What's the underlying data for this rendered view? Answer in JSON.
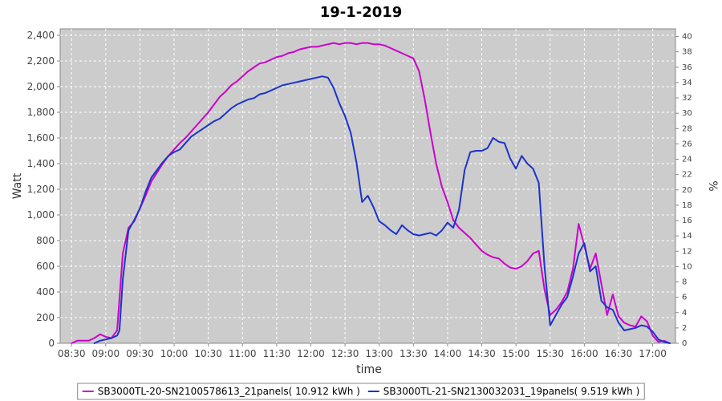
{
  "chart_data": {
    "type": "line",
    "title": "19-1-2019",
    "xlabel": "time",
    "ylabel": "Watt",
    "y2label": "%",
    "ylim": [
      0,
      2450
    ],
    "y2lim": [
      0,
      41
    ],
    "yticks": [
      0,
      200,
      400,
      600,
      800,
      1000,
      1200,
      1400,
      1600,
      1800,
      2000,
      2200,
      2400
    ],
    "ytick_labels": [
      "0",
      "200",
      "400",
      "600",
      "800",
      "1,000",
      "1,200",
      "1,400",
      "1,600",
      "1,800",
      "2,000",
      "2,200",
      "2,400"
    ],
    "y2ticks": [
      0,
      2,
      4,
      6,
      8,
      10,
      12,
      14,
      16,
      18,
      20,
      22,
      24,
      26,
      28,
      30,
      32,
      34,
      36,
      38,
      40
    ],
    "xlim": [
      "08:20",
      "17:20"
    ],
    "xticks": [
      "08:30",
      "09:00",
      "09:30",
      "10:00",
      "10:30",
      "11:00",
      "11:30",
      "12:00",
      "12:30",
      "13:00",
      "13:30",
      "14:00",
      "14:30",
      "15:00",
      "15:30",
      "16:00",
      "16:30",
      "17:00"
    ],
    "grid": true,
    "legend_position": "bottom",
    "series": [
      {
        "name": "SB3000TL-20-SN2100578613_21panels( 10.912 kWh )",
        "color": "#cc00cc",
        "points": [
          [
            "08:30",
            0
          ],
          [
            "08:35",
            20
          ],
          [
            "08:45",
            20
          ],
          [
            "08:50",
            40
          ],
          [
            "08:55",
            70
          ],
          [
            "09:00",
            50
          ],
          [
            "09:05",
            40
          ],
          [
            "09:10",
            100
          ],
          [
            "09:15",
            700
          ],
          [
            "09:20",
            900
          ],
          [
            "09:25",
            950
          ],
          [
            "09:30",
            1050
          ],
          [
            "09:35",
            1150
          ],
          [
            "09:40",
            1260
          ],
          [
            "09:45",
            1330
          ],
          [
            "09:50",
            1400
          ],
          [
            "09:55",
            1460
          ],
          [
            "10:00",
            1510
          ],
          [
            "10:05",
            1560
          ],
          [
            "10:10",
            1600
          ],
          [
            "10:15",
            1650
          ],
          [
            "10:20",
            1700
          ],
          [
            "10:25",
            1750
          ],
          [
            "10:30",
            1800
          ],
          [
            "10:35",
            1860
          ],
          [
            "10:40",
            1920
          ],
          [
            "10:45",
            1960
          ],
          [
            "10:50",
            2010
          ],
          [
            "10:55",
            2040
          ],
          [
            "11:00",
            2080
          ],
          [
            "11:05",
            2120
          ],
          [
            "11:10",
            2150
          ],
          [
            "11:15",
            2180
          ],
          [
            "11:20",
            2190
          ],
          [
            "11:25",
            2210
          ],
          [
            "11:30",
            2230
          ],
          [
            "11:35",
            2240
          ],
          [
            "11:40",
            2260
          ],
          [
            "11:45",
            2270
          ],
          [
            "11:50",
            2290
          ],
          [
            "11:55",
            2300
          ],
          [
            "12:00",
            2310
          ],
          [
            "12:05",
            2310
          ],
          [
            "12:10",
            2320
          ],
          [
            "12:15",
            2330
          ],
          [
            "12:20",
            2340
          ],
          [
            "12:25",
            2330
          ],
          [
            "12:30",
            2340
          ],
          [
            "12:35",
            2340
          ],
          [
            "12:40",
            2330
          ],
          [
            "12:45",
            2340
          ],
          [
            "12:50",
            2340
          ],
          [
            "12:55",
            2330
          ],
          [
            "13:00",
            2330
          ],
          [
            "13:05",
            2320
          ],
          [
            "13:10",
            2300
          ],
          [
            "13:15",
            2280
          ],
          [
            "13:20",
            2260
          ],
          [
            "13:25",
            2240
          ],
          [
            "13:30",
            2220
          ],
          [
            "13:35",
            2120
          ],
          [
            "13:40",
            1900
          ],
          [
            "13:45",
            1640
          ],
          [
            "13:50",
            1400
          ],
          [
            "13:55",
            1220
          ],
          [
            "14:00",
            1100
          ],
          [
            "14:05",
            960
          ],
          [
            "14:10",
            900
          ],
          [
            "14:15",
            860
          ],
          [
            "14:20",
            820
          ],
          [
            "14:25",
            770
          ],
          [
            "14:30",
            720
          ],
          [
            "14:35",
            690
          ],
          [
            "14:40",
            670
          ],
          [
            "14:45",
            660
          ],
          [
            "14:50",
            620
          ],
          [
            "14:55",
            590
          ],
          [
            "15:00",
            580
          ],
          [
            "15:05",
            600
          ],
          [
            "15:10",
            640
          ],
          [
            "15:15",
            700
          ],
          [
            "15:20",
            720
          ],
          [
            "15:25",
            420
          ],
          [
            "15:30",
            220
          ],
          [
            "15:35",
            260
          ],
          [
            "15:40",
            320
          ],
          [
            "15:45",
            400
          ],
          [
            "15:50",
            580
          ],
          [
            "15:55",
            930
          ],
          [
            "16:00",
            760
          ],
          [
            "16:05",
            580
          ],
          [
            "16:10",
            700
          ],
          [
            "16:15",
            460
          ],
          [
            "16:20",
            220
          ],
          [
            "16:25",
            380
          ],
          [
            "16:30",
            210
          ],
          [
            "16:35",
            160
          ],
          [
            "16:40",
            140
          ],
          [
            "16:45",
            130
          ],
          [
            "16:50",
            210
          ],
          [
            "16:55",
            170
          ],
          [
            "17:00",
            60
          ],
          [
            "17:05",
            10
          ],
          [
            "17:10",
            20
          ],
          [
            "17:15",
            0
          ]
        ]
      },
      {
        "name": "SB3000TL-21-SN2130032031_19panels( 9.519 kWh )",
        "color": "#1a33cc",
        "points": [
          [
            "08:50",
            0
          ],
          [
            "08:55",
            20
          ],
          [
            "09:00",
            30
          ],
          [
            "09:05",
            40
          ],
          [
            "09:10",
            60
          ],
          [
            "09:12",
            100
          ],
          [
            "09:15",
            500
          ],
          [
            "09:20",
            880
          ],
          [
            "09:25",
            960
          ],
          [
            "09:30",
            1050
          ],
          [
            "09:35",
            1180
          ],
          [
            "09:40",
            1290
          ],
          [
            "09:45",
            1350
          ],
          [
            "09:50",
            1410
          ],
          [
            "09:55",
            1460
          ],
          [
            "10:00",
            1490
          ],
          [
            "10:05",
            1510
          ],
          [
            "10:10",
            1560
          ],
          [
            "10:15",
            1610
          ],
          [
            "10:20",
            1640
          ],
          [
            "10:25",
            1670
          ],
          [
            "10:30",
            1700
          ],
          [
            "10:35",
            1730
          ],
          [
            "10:40",
            1750
          ],
          [
            "10:45",
            1790
          ],
          [
            "10:50",
            1830
          ],
          [
            "10:55",
            1860
          ],
          [
            "11:00",
            1880
          ],
          [
            "11:05",
            1900
          ],
          [
            "11:10",
            1910
          ],
          [
            "11:15",
            1940
          ],
          [
            "11:20",
            1950
          ],
          [
            "11:25",
            1970
          ],
          [
            "11:30",
            1990
          ],
          [
            "11:35",
            2010
          ],
          [
            "11:40",
            2020
          ],
          [
            "11:45",
            2030
          ],
          [
            "11:50",
            2040
          ],
          [
            "11:55",
            2050
          ],
          [
            "12:00",
            2060
          ],
          [
            "12:05",
            2070
          ],
          [
            "12:10",
            2080
          ],
          [
            "12:15",
            2070
          ],
          [
            "12:20",
            1990
          ],
          [
            "12:25",
            1870
          ],
          [
            "12:30",
            1770
          ],
          [
            "12:35",
            1640
          ],
          [
            "12:40",
            1410
          ],
          [
            "12:45",
            1100
          ],
          [
            "12:50",
            1150
          ],
          [
            "12:55",
            1060
          ],
          [
            "13:00",
            950
          ],
          [
            "13:05",
            920
          ],
          [
            "13:10",
            880
          ],
          [
            "13:15",
            850
          ],
          [
            "13:20",
            920
          ],
          [
            "13:25",
            880
          ],
          [
            "13:30",
            850
          ],
          [
            "13:35",
            840
          ],
          [
            "13:40",
            850
          ],
          [
            "13:45",
            860
          ],
          [
            "13:50",
            840
          ],
          [
            "13:55",
            880
          ],
          [
            "14:00",
            940
          ],
          [
            "14:05",
            900
          ],
          [
            "14:10",
            1040
          ],
          [
            "14:15",
            1350
          ],
          [
            "14:20",
            1490
          ],
          [
            "14:25",
            1500
          ],
          [
            "14:30",
            1500
          ],
          [
            "14:35",
            1520
          ],
          [
            "14:40",
            1600
          ],
          [
            "14:45",
            1570
          ],
          [
            "14:50",
            1560
          ],
          [
            "14:55",
            1440
          ],
          [
            "15:00",
            1360
          ],
          [
            "15:05",
            1460
          ],
          [
            "15:10",
            1400
          ],
          [
            "15:15",
            1360
          ],
          [
            "15:20",
            1250
          ],
          [
            "15:25",
            600
          ],
          [
            "15:30",
            140
          ],
          [
            "15:35",
            220
          ],
          [
            "15:40",
            300
          ],
          [
            "15:45",
            360
          ],
          [
            "15:50",
            520
          ],
          [
            "15:55",
            700
          ],
          [
            "16:00",
            780
          ],
          [
            "16:05",
            560
          ],
          [
            "16:10",
            600
          ],
          [
            "16:15",
            330
          ],
          [
            "16:20",
            280
          ],
          [
            "16:25",
            260
          ],
          [
            "16:30",
            160
          ],
          [
            "16:35",
            100
          ],
          [
            "16:40",
            110
          ],
          [
            "16:45",
            120
          ],
          [
            "16:50",
            140
          ],
          [
            "16:55",
            130
          ],
          [
            "17:00",
            90
          ],
          [
            "17:05",
            30
          ],
          [
            "17:10",
            10
          ],
          [
            "17:15",
            0
          ]
        ]
      }
    ]
  }
}
